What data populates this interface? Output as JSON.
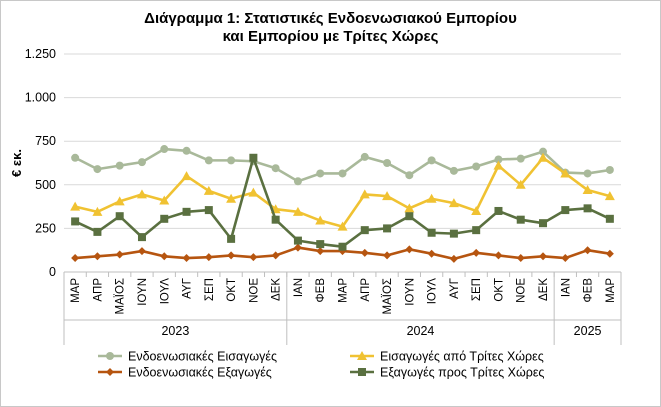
{
  "chart_data": {
    "type": "line",
    "title_lines": [
      "Διάγραμμα 1: Στατιστικές Ενδοενωσιακού Εμπορίου",
      "και Εμπορίου με Τρίτες Χώρες"
    ],
    "ylabel": "€ εκ.",
    "ylim": [
      0,
      1250
    ],
    "yticks": [
      0,
      250,
      500,
      750,
      1000,
      1250
    ],
    "ytick_labels": [
      "0",
      "250",
      "500",
      "750",
      "1.000",
      "1.250"
    ],
    "grid": true,
    "categories": [
      "ΜΑΡ",
      "ΑΠΡ",
      "ΜΑΪΟΣ",
      "ΙΟΥΝ",
      "ΙΟΥΛ",
      "ΑΥΓ",
      "ΣΕΠ",
      "ΟΚΤ",
      "ΝΟΕ",
      "ΔΕΚ",
      "ΙΑΝ",
      "ΦΕΒ",
      "ΜΑΡ",
      "ΑΠΡ",
      "ΜΑΪΟΣ",
      "ΙΟΥΝ",
      "ΙΟΥΛ",
      "ΑΥΓ",
      "ΣΕΠ",
      "ΟΚΤ",
      "ΝΟΕ",
      "ΔΕΚ",
      "ΙΑΝ",
      "ΦΕΒ",
      "ΜΑΡ"
    ],
    "year_groups": [
      {
        "label": "2023",
        "count": 10
      },
      {
        "label": "2024",
        "count": 12
      },
      {
        "label": "2025",
        "count": 3
      }
    ],
    "legend_position": "bottom",
    "series": [
      {
        "name": "Ενδοενωσιακές Εισαγωγές",
        "color": "#a9b99a",
        "marker": "circle",
        "values": [
          655,
          590,
          610,
          630,
          705,
          695,
          640,
          640,
          635,
          595,
          520,
          565,
          565,
          660,
          625,
          555,
          640,
          580,
          605,
          645,
          650,
          690,
          570,
          565,
          585
        ]
      },
      {
        "name": "Εισαγωγές από Τρίτες Χώρες",
        "color": "#f0c232",
        "marker": "triangle",
        "values": [
          375,
          345,
          405,
          445,
          410,
          550,
          465,
          420,
          455,
          360,
          345,
          295,
          260,
          445,
          435,
          365,
          420,
          395,
          350,
          610,
          500,
          655,
          565,
          470,
          435
        ]
      },
      {
        "name": "Ενδοενωσιακές Εξαγωγές",
        "color": "#b65510",
        "marker": "diamond",
        "values": [
          80,
          90,
          100,
          120,
          90,
          80,
          85,
          95,
          85,
          95,
          140,
          120,
          120,
          110,
          95,
          130,
          105,
          75,
          110,
          95,
          80,
          90,
          80,
          125,
          105
        ]
      },
      {
        "name": "Εξαγωγές προς Τρίτες Χώρες",
        "color": "#5a7040",
        "marker": "square",
        "values": [
          290,
          230,
          320,
          200,
          305,
          345,
          355,
          190,
          655,
          300,
          180,
          160,
          145,
          240,
          250,
          320,
          225,
          220,
          240,
          350,
          300,
          280,
          355,
          365,
          305
        ]
      }
    ]
  }
}
